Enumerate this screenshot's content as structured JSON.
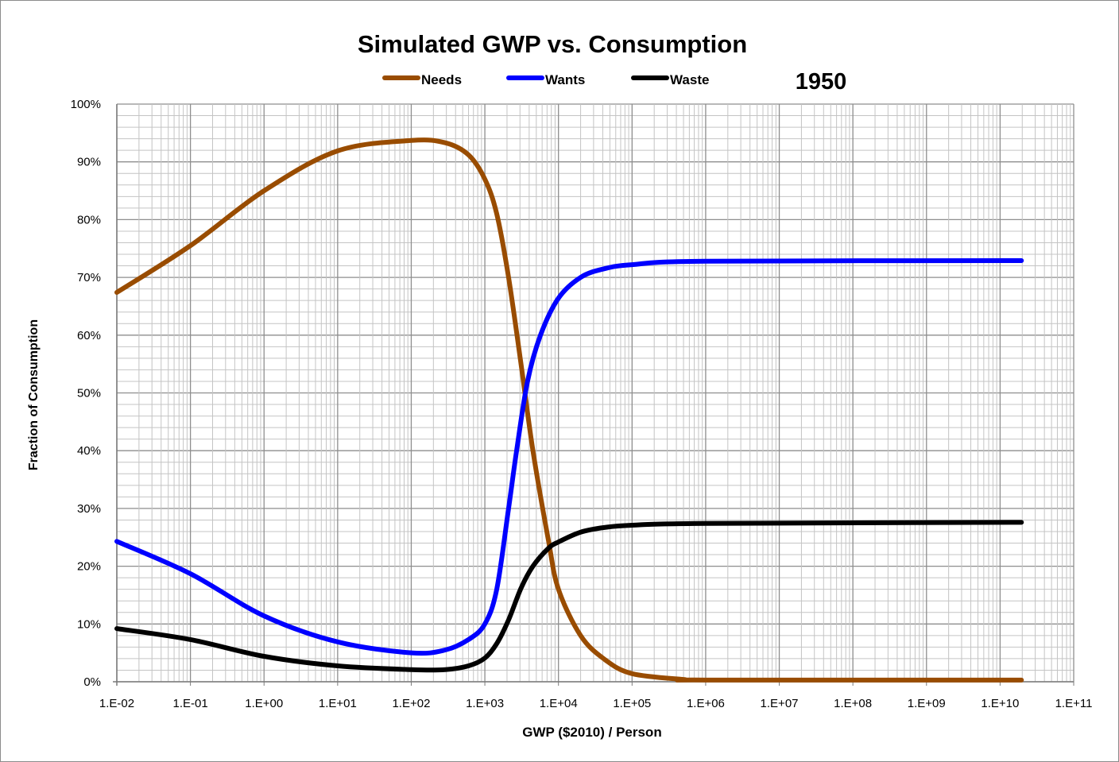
{
  "chart_data": {
    "type": "line",
    "title": "Simulated GWP vs. Consumption",
    "annotation": "1950",
    "xlabel": "GWP ($2010) / Person",
    "ylabel": "Fraction of Consumption",
    "x_scale": "log",
    "xlim": [
      0.01,
      100000000000.0
    ],
    "ylim": [
      0,
      100
    ],
    "grid": true,
    "legend_position": "top",
    "x_tick_labels": [
      "1.E-02",
      "1.E-01",
      "1.E+00",
      "1.E+01",
      "1.E+02",
      "1.E+03",
      "1.E+04",
      "1.E+05",
      "1.E+06",
      "1.E+07",
      "1.E+08",
      "1.E+09",
      "1.E+10",
      "1.E+11"
    ],
    "y_tick_labels": [
      "0%",
      "10%",
      "20%",
      "30%",
      "40%",
      "50%",
      "60%",
      "70%",
      "80%",
      "90%",
      "100%"
    ],
    "series": [
      {
        "name": "Needs",
        "color": "#994c00",
        "x": [
          0.01,
          0.1,
          1,
          10,
          100,
          290,
          600,
          1000,
          1450,
          2100,
          3100,
          4500,
          7300,
          10000,
          20000,
          42000,
          100000,
          500000,
          1000000,
          19500000000
        ],
        "y": [
          67.4,
          75.5,
          85,
          91.9,
          93.7,
          93.3,
          91.2,
          87,
          81,
          70,
          55,
          40,
          24.5,
          16,
          8,
          3.9,
          1.4,
          0.4,
          0.3,
          0.3
        ]
      },
      {
        "name": "Wants",
        "color": "#0000ff",
        "x": [
          0.01,
          0.1,
          1,
          10,
          100,
          290,
          600,
          1000,
          1450,
          2100,
          2700,
          3800,
          5700,
          10000,
          20000,
          42000,
          100000,
          1000000,
          19500000000
        ],
        "y": [
          24.3,
          18.7,
          11.4,
          6.9,
          5.0,
          5.5,
          7.3,
          10,
          16,
          30,
          40,
          52,
          60,
          66.4,
          70,
          71.5,
          72.2,
          72.8,
          72.9
        ]
      },
      {
        "name": "Waste",
        "color": "#000000",
        "x": [
          0.01,
          0.1,
          1,
          10,
          100,
          290,
          600,
          1000,
          1450,
          2100,
          3100,
          4500,
          7300,
          10000,
          20000,
          42000,
          100000,
          1000000,
          19500000000
        ],
        "y": [
          9.2,
          7.3,
          4.4,
          2.75,
          2.1,
          2.1,
          2.75,
          4.1,
          6.6,
          10.7,
          16.2,
          20,
          23.1,
          24.2,
          25.9,
          26.7,
          27.1,
          27.4,
          27.6
        ]
      }
    ]
  }
}
